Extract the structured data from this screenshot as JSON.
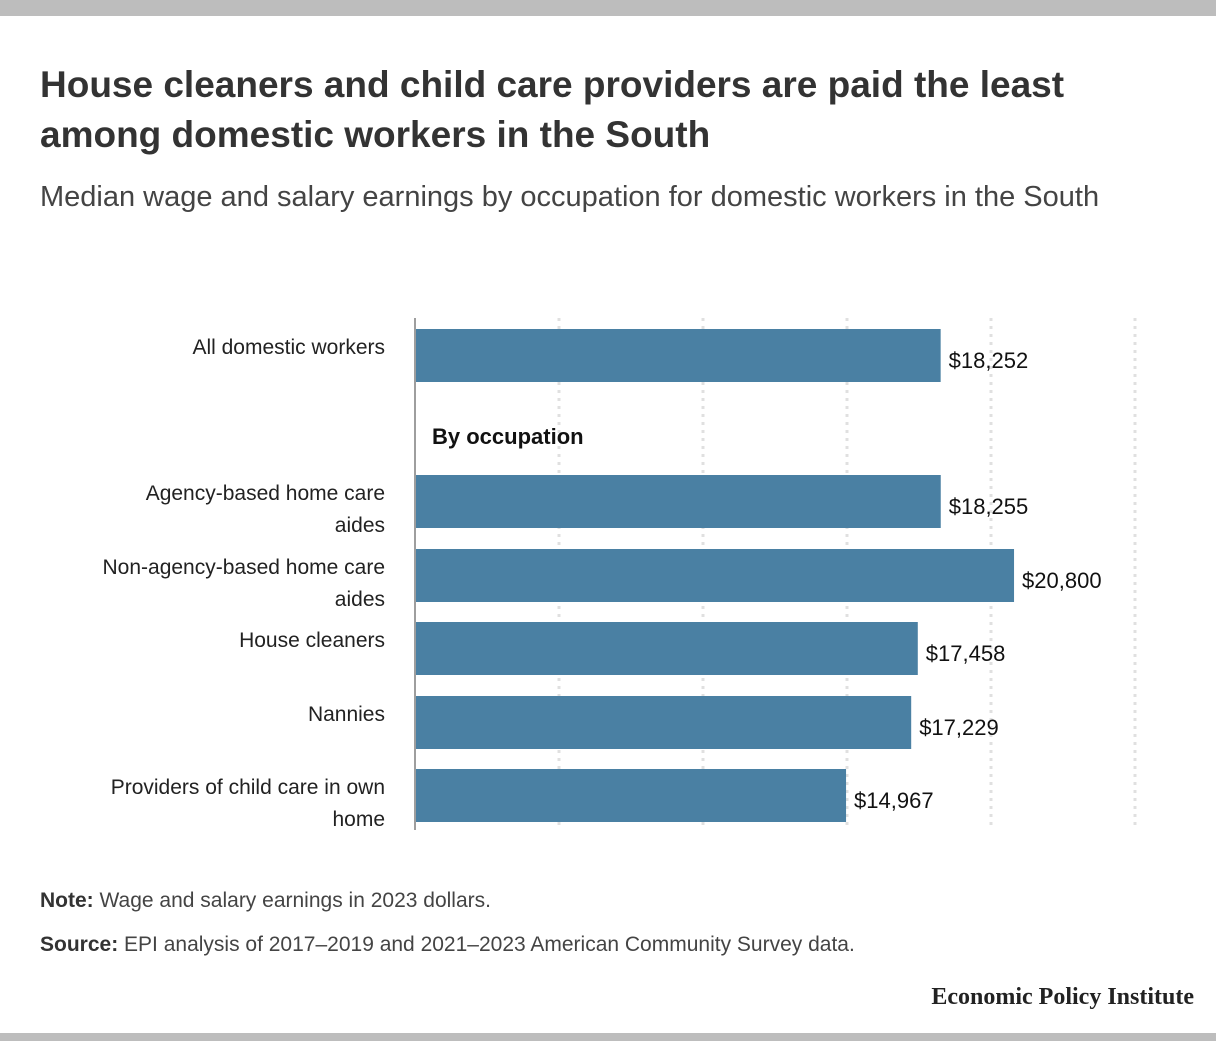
{
  "title": "House cleaners and child care providers are paid the least among domestic workers in the South",
  "subtitle": "Median wage and salary earnings by occupation for domestic workers in the South",
  "note_label": "Note:",
  "note_text": " Wage and salary earnings in 2023 dollars.",
  "source_label": "Source:",
  "source_text": " EPI analysis of 2017–2019 and 2021–2023 American Community Survey data.",
  "logo": "Economic Policy Institute",
  "colors": {
    "bar": "#4a80a3",
    "grid": "#e0e0e0",
    "axis": "#9e9e9e"
  },
  "chart_data": {
    "type": "bar",
    "orientation": "horizontal",
    "title": "House cleaners and child care providers are paid the least among domestic workers in the South",
    "subtitle": "Median wage and salary earnings by occupation for domestic workers in the South",
    "xlim": [
      0,
      25000
    ],
    "grid": true,
    "group_label": "By occupation",
    "categories": [
      [
        "All domestic workers"
      ],
      [
        "Agency-based home care",
        "aides"
      ],
      [
        "Non-agency-based home care",
        "aides"
      ],
      [
        "House cleaners"
      ],
      [
        "Nannies"
      ],
      [
        "Providers of child care in own",
        "home"
      ]
    ],
    "values": [
      18252,
      18255,
      20800,
      17458,
      17229,
      14967
    ],
    "value_labels": [
      "$18,252",
      "$18,255",
      "$20,800",
      "$17,458",
      "$17,229",
      "$14,967"
    ]
  }
}
